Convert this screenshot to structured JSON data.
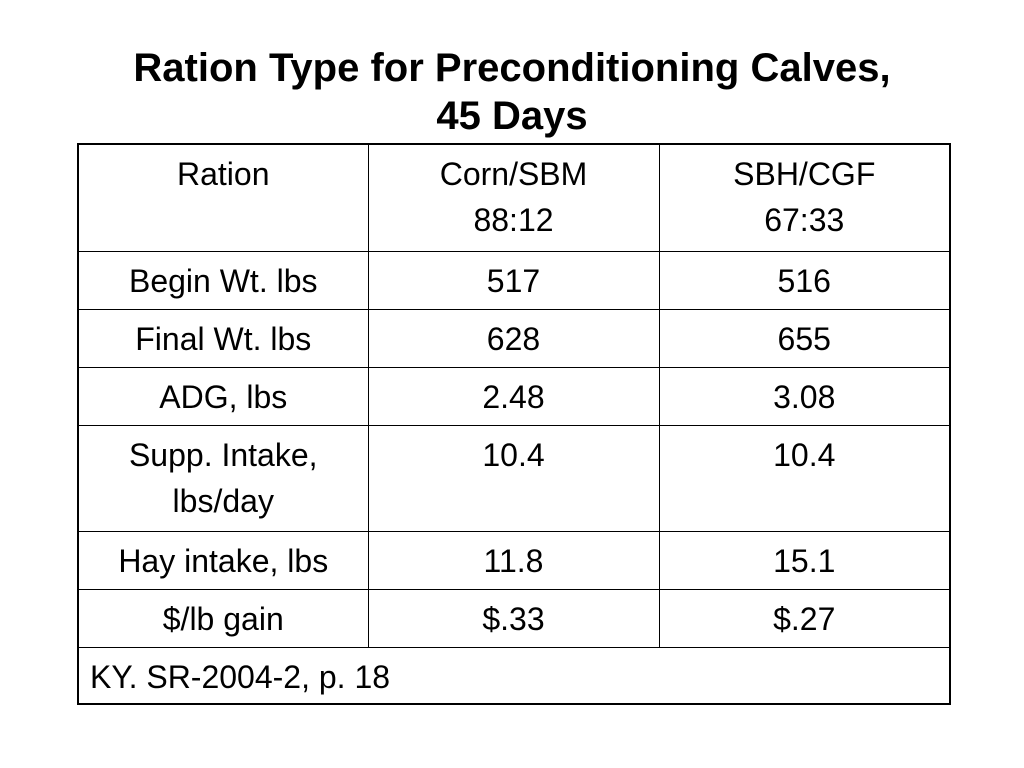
{
  "title": {
    "line1": "Ration Type for Preconditioning Calves,",
    "line2": "45 Days"
  },
  "table": {
    "header": {
      "label": "Ration",
      "col1": [
        "Corn/SBM",
        "88:12"
      ],
      "col2": [
        "SBH/CGF",
        "67:33"
      ]
    },
    "rows": [
      {
        "label": [
          "Begin Wt. lbs"
        ],
        "col1": "517",
        "col2": "516"
      },
      {
        "label": [
          "Final Wt. lbs"
        ],
        "col1": "628",
        "col2": "655"
      },
      {
        "label": [
          "ADG, lbs"
        ],
        "col1": "2.48",
        "col2": "3.08"
      },
      {
        "label": [
          "Supp. Intake,",
          "lbs/day"
        ],
        "col1": "10.4",
        "col2": "10.4"
      },
      {
        "label": [
          "Hay intake, lbs"
        ],
        "col1": "11.8",
        "col2": "15.1"
      },
      {
        "label": [
          "$/lb gain"
        ],
        "col1": "$.33",
        "col2": "$.27"
      }
    ],
    "source": "KY. SR-2004-2, p. 18"
  }
}
